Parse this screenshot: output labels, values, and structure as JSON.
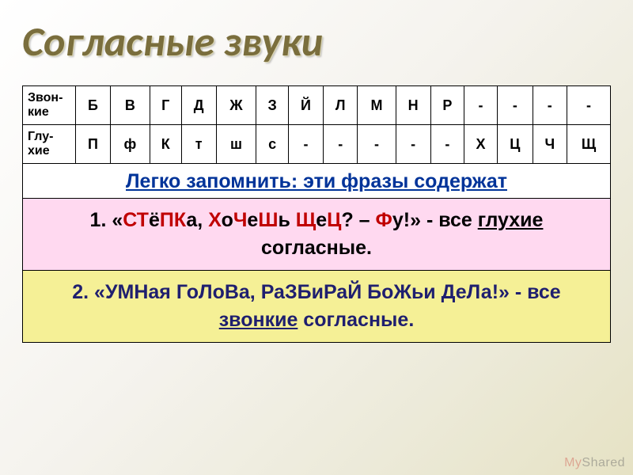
{
  "title": "Согласные звуки",
  "rows": {
    "voiced": {
      "label": "Звон-\nкие",
      "cells": [
        {
          "t": "Б"
        },
        {
          "t": "В"
        },
        {
          "t": "Г"
        },
        {
          "t": "Д"
        },
        {
          "t": "Ж"
        },
        {
          "t": "З"
        },
        {
          "t": "Й"
        },
        {
          "t": "Л"
        },
        {
          "t": "М"
        },
        {
          "t": "Н"
        },
        {
          "t": "Р"
        },
        {
          "t": "-"
        },
        {
          "t": "-"
        },
        {
          "t": "-"
        },
        {
          "t": "-"
        }
      ]
    },
    "voiceless": {
      "label": "Глу-\nхие",
      "cells": [
        {
          "t": "П",
          "red": true
        },
        {
          "t": "ф",
          "red": true
        },
        {
          "t": "К",
          "red": true
        },
        {
          "t": "т",
          "red": true
        },
        {
          "t": "ш",
          "red": true
        },
        {
          "t": "с",
          "red": true
        },
        {
          "t": "-"
        },
        {
          "t": "-"
        },
        {
          "t": "-"
        },
        {
          "t": "-"
        },
        {
          "t": "-"
        },
        {
          "t": "Х",
          "red": true
        },
        {
          "t": "Ц",
          "red": true
        },
        {
          "t": "Ч",
          "red": true
        },
        {
          "t": "Щ",
          "red": true
        }
      ]
    }
  },
  "caption": "Легко запомнить: эти фразы содержат",
  "mnemo1": {
    "num": "1. ",
    "open": "«",
    "phrase": [
      {
        "t": "СТ",
        "c": "hl"
      },
      {
        "t": "ё",
        "c": "plain"
      },
      {
        "t": "ПК",
        "c": "hl"
      },
      {
        "t": "а, ",
        "c": "plain"
      },
      {
        "t": "Х",
        "c": "hl"
      },
      {
        "t": "о",
        "c": "plain"
      },
      {
        "t": "Ч",
        "c": "hl"
      },
      {
        "t": "е",
        "c": "plain"
      },
      {
        "t": "Ш",
        "c": "hl"
      },
      {
        "t": "ь ",
        "c": "plain"
      },
      {
        "t": "Щ",
        "c": "hl"
      },
      {
        "t": "е",
        "c": "plain"
      },
      {
        "t": "Ц",
        "c": "hl"
      },
      {
        "t": "? – ",
        "c": "plain"
      },
      {
        "t": "Ф",
        "c": "hl"
      },
      {
        "t": "у!",
        "c": "plain"
      }
    ],
    "close": "» - все ",
    "kw": "глухие",
    "tail": " согласные."
  },
  "mnemo2": {
    "num": "2. ",
    "open": "«",
    "phrase": "УМНая ГоЛоВа, РаЗБиРаЙ БоЖьи ДеЛа!",
    "close": "» - все ",
    "kw": "звонкие",
    "tail": " согласные."
  },
  "watermark": {
    "a": "My",
    "b": "Shared"
  }
}
